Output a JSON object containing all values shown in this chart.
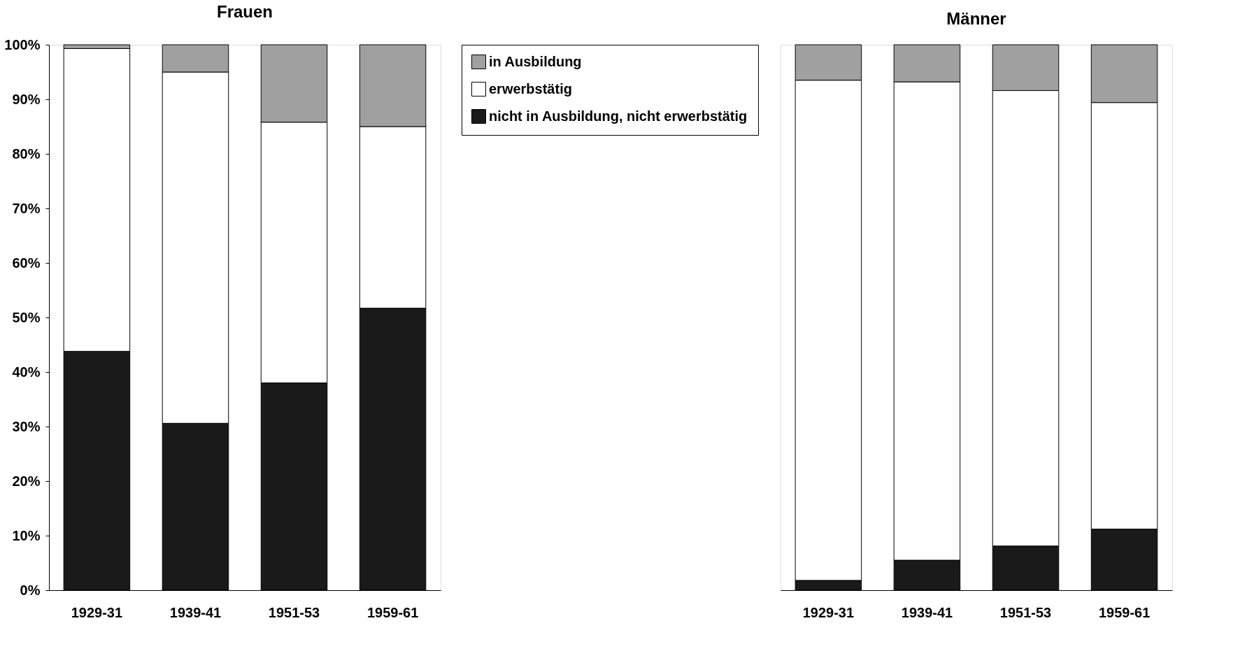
{
  "chart_data": [
    {
      "type": "bar",
      "title": "Frauen",
      "stacked": true,
      "categories": [
        "1929-31",
        "1939-41",
        "1951-53",
        "1959-61"
      ],
      "series": [
        {
          "name": "nicht in Ausbildung, nicht erwerbstätig",
          "color": "#1a1a1a",
          "values": [
            43.8,
            30.6,
            38.0,
            51.7
          ]
        },
        {
          "name": "erwerbstätig",
          "color": "#ffffff",
          "values": [
            55.5,
            64.4,
            47.8,
            33.3
          ]
        },
        {
          "name": "in Ausbildung",
          "color": "#a0a0a0",
          "values": [
            0.7,
            5.0,
            14.2,
            15.0
          ]
        }
      ],
      "ylim": [
        0,
        100
      ],
      "yticks": [
        {
          "value": 0,
          "label": "0%"
        },
        {
          "value": 10,
          "label": "10%"
        },
        {
          "value": 20,
          "label": "20%"
        },
        {
          "value": 30,
          "label": "30%"
        },
        {
          "value": 40,
          "label": "40%"
        },
        {
          "value": 50,
          "label": "50%"
        },
        {
          "value": 60,
          "label": "60%"
        },
        {
          "value": 70,
          "label": "70%"
        },
        {
          "value": 80,
          "label": "80%"
        },
        {
          "value": 90,
          "label": "90%"
        },
        {
          "value": 100,
          "label": "100%"
        }
      ],
      "grid": false,
      "legend": "right"
    },
    {
      "type": "bar",
      "title": "Männer",
      "stacked": true,
      "categories": [
        "1929-31",
        "1939-41",
        "1951-53",
        "1959-61"
      ],
      "series": [
        {
          "color": "#1a1a1a",
          "values": [
            1.8,
            5.5,
            8.1,
            11.2
          ]
        },
        {
          "color": "#ffffff",
          "values": [
            91.7,
            87.7,
            83.5,
            78.2
          ]
        },
        {
          "color": "#a0a0a0",
          "values": [
            6.5,
            6.8,
            8.4,
            10.6
          ]
        }
      ],
      "ylim": [
        0,
        100
      ],
      "grid": false,
      "tick_labels": "x"
    }
  ]
}
